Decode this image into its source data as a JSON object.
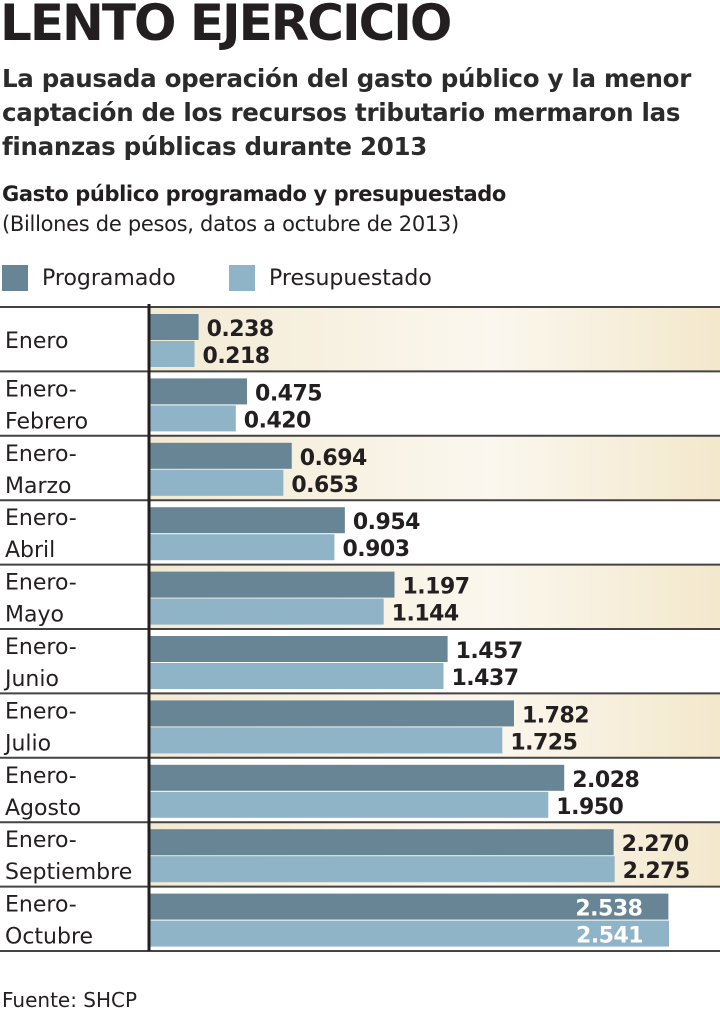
{
  "header": {
    "title": "LENTO EJERCICIO",
    "subtitle": "La pausada operación del gasto público y la menor captación de los recursos tributario mermaron las finanzas públicas durante 2013"
  },
  "source": "Fuente: SHCP",
  "colors": {
    "programado": "#688596",
    "presupuestado": "#8fb3c7",
    "band": "#f6eedb"
  },
  "chart_data": {
    "type": "bar",
    "orientation": "horizontal",
    "title": "Gasto público programado y presupuestado",
    "subtitle": "(Billones de pesos, datos a octubre de 2013)",
    "legend": [
      "Programado",
      "Presupuestado"
    ],
    "legend_placement": "top-left",
    "categories": [
      [
        "Enero"
      ],
      [
        "Enero-",
        "Febrero"
      ],
      [
        "Enero-",
        "Marzo"
      ],
      [
        "Enero-",
        "Abril"
      ],
      [
        "Enero-",
        "Mayo"
      ],
      [
        "Enero-",
        "Junio"
      ],
      [
        "Enero-",
        "Julio"
      ],
      [
        "Enero-",
        "Agosto"
      ],
      [
        "Enero-",
        "Septiembre"
      ],
      [
        "Enero-",
        "Octubre"
      ]
    ],
    "series": [
      {
        "name": "Programado",
        "values": [
          0.238,
          0.475,
          0.694,
          0.954,
          1.197,
          1.457,
          1.782,
          2.028,
          2.27,
          2.538
        ],
        "labels": [
          "0.238",
          "0.475",
          "0.694",
          "0.954",
          "1.197",
          "1.457",
          "1.782",
          "2.028",
          "2.270",
          "2.538"
        ]
      },
      {
        "name": "Presupuestado",
        "values": [
          0.218,
          0.42,
          0.653,
          0.903,
          1.144,
          1.437,
          1.725,
          1.95,
          2.275,
          2.541
        ],
        "labels": [
          "0.218",
          "0.420",
          "0.653",
          "0.903",
          "1.144",
          "1.437",
          "1.725",
          "1.950",
          "2.275",
          "2.541"
        ]
      }
    ],
    "xlim": [
      0,
      2.541
    ]
  }
}
